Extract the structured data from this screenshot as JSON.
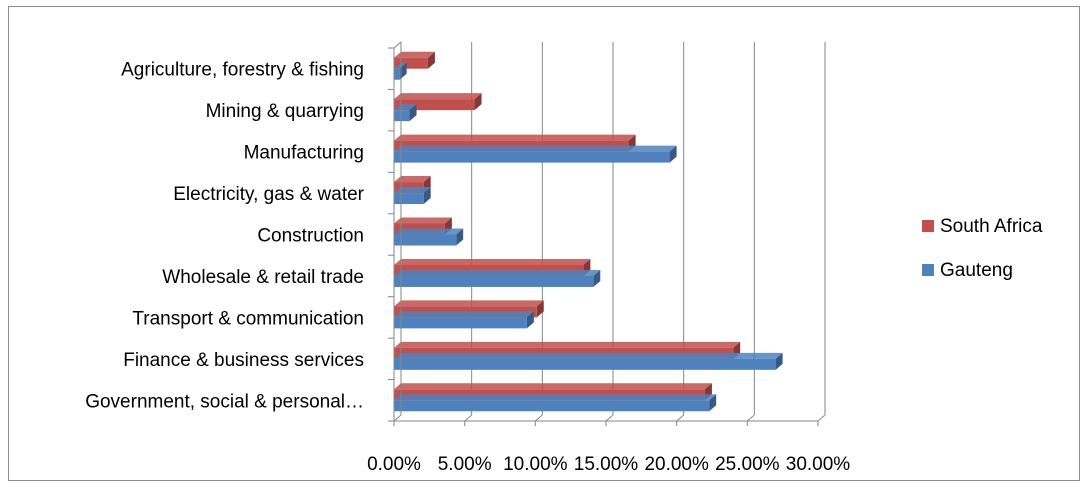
{
  "chart_data": {
    "type": "bar",
    "orientation": "horizontal",
    "style": "3d-clustered",
    "categories": [
      "Agriculture, forestry & fishing",
      "Mining & quarrying",
      "Manufacturing",
      "Electricity, gas & water",
      "Construction",
      "Wholesale & retail trade",
      "Transport & communication",
      "Finance & business services",
      "Government, social & personal…"
    ],
    "series": [
      {
        "name": "South Africa",
        "color": "#c0504d",
        "values": [
          0.024,
          0.057,
          0.166,
          0.021,
          0.036,
          0.134,
          0.101,
          0.24,
          0.22
        ]
      },
      {
        "name": "Gauteng",
        "color": "#4f81bd",
        "values": [
          0.004,
          0.011,
          0.195,
          0.021,
          0.044,
          0.141,
          0.094,
          0.27,
          0.223
        ]
      }
    ],
    "xlim": [
      0,
      0.3
    ],
    "x_ticks": [
      "0.00%",
      "5.00%",
      "10.00%",
      "15.00%",
      "20.00%",
      "25.00%",
      "30.00%"
    ],
    "grid": true,
    "legend_position": "right"
  }
}
